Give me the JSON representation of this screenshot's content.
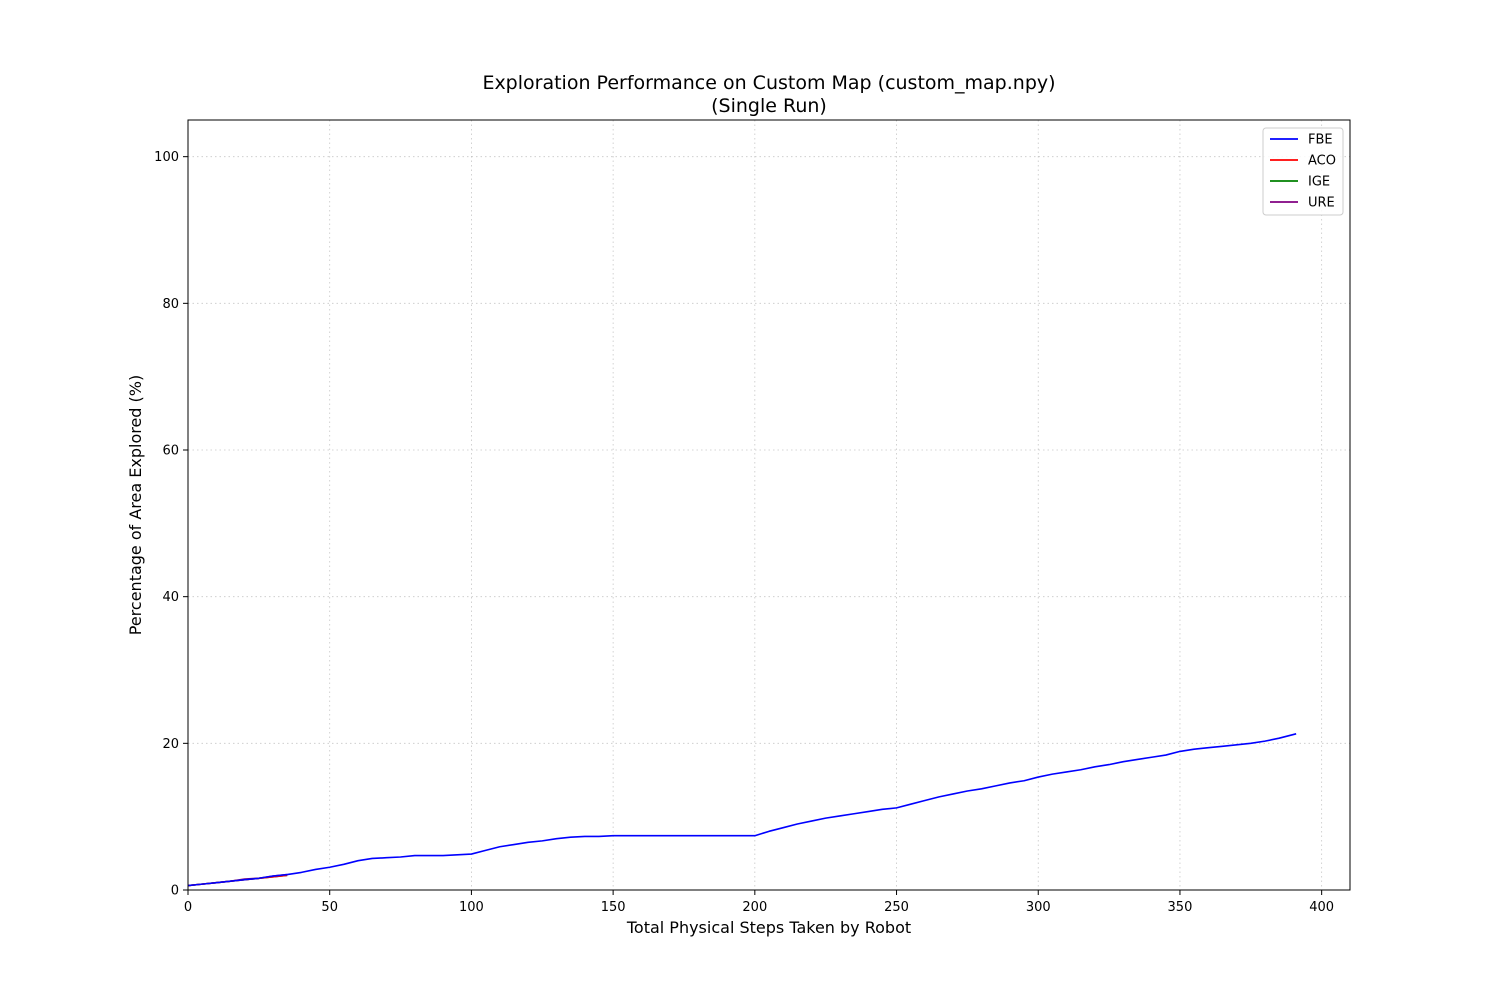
{
  "chart_data": {
    "type": "line",
    "title": "Exploration Performance on Custom Map (custom_map.npy)",
    "subtitle": "(Single Run)",
    "xlabel": "Total Physical Steps Taken by Robot",
    "ylabel": "Percentage of Area Explored (%)",
    "xlim": [
      0,
      410
    ],
    "ylim": [
      0,
      105
    ],
    "xticks": [
      0,
      50,
      100,
      150,
      200,
      250,
      300,
      350,
      400
    ],
    "yticks": [
      0,
      20,
      40,
      60,
      80,
      100
    ],
    "grid": true,
    "legend_position": "top-right",
    "series": [
      {
        "name": "FBE",
        "color": "#0000ff",
        "x": [
          0,
          5,
          10,
          15,
          20,
          25,
          30,
          35,
          40,
          45,
          50,
          55,
          60,
          65,
          70,
          75,
          80,
          85,
          90,
          95,
          100,
          105,
          110,
          115,
          120,
          125,
          130,
          135,
          140,
          145,
          150,
          160,
          170,
          180,
          190,
          200,
          205,
          210,
          215,
          220,
          225,
          230,
          235,
          240,
          245,
          250,
          255,
          260,
          265,
          270,
          275,
          280,
          285,
          290,
          295,
          300,
          305,
          310,
          315,
          320,
          325,
          330,
          335,
          340,
          345,
          350,
          355,
          360,
          365,
          370,
          375,
          380,
          385,
          391
        ],
        "y": [
          0.6,
          0.8,
          1.0,
          1.2,
          1.4,
          1.6,
          1.9,
          2.1,
          2.4,
          2.8,
          3.1,
          3.5,
          4.0,
          4.3,
          4.4,
          4.5,
          4.7,
          4.7,
          4.7,
          4.8,
          4.9,
          5.4,
          5.9,
          6.2,
          6.5,
          6.7,
          7.0,
          7.2,
          7.3,
          7.3,
          7.4,
          7.4,
          7.4,
          7.4,
          7.4,
          7.4,
          8.0,
          8.5,
          9.0,
          9.4,
          9.8,
          10.1,
          10.4,
          10.7,
          11.0,
          11.2,
          11.7,
          12.2,
          12.7,
          13.1,
          13.5,
          13.8,
          14.2,
          14.6,
          14.9,
          15.4,
          15.8,
          16.1,
          16.4,
          16.8,
          17.1,
          17.5,
          17.8,
          18.1,
          18.4,
          18.9,
          19.2,
          19.4,
          19.6,
          19.8,
          20.0,
          20.3,
          20.7,
          21.3
        ]
      },
      {
        "name": "ACO",
        "color": "#ff0000",
        "x": [
          0,
          5,
          10,
          15,
          20,
          25,
          30,
          35
        ],
        "y": [
          0.6,
          0.8,
          1.0,
          1.2,
          1.4,
          1.6,
          1.8,
          2.0
        ]
      },
      {
        "name": "IGE",
        "color": "#008000",
        "x": [
          0,
          5,
          10,
          15,
          20,
          25,
          30,
          35
        ],
        "y": [
          0.6,
          0.8,
          1.0,
          1.2,
          1.4,
          1.6,
          1.8,
          2.0
        ]
      },
      {
        "name": "URE",
        "color": "#800080",
        "x": [
          0,
          5,
          10,
          15,
          20,
          25,
          30,
          35
        ],
        "y": [
          0.6,
          0.8,
          1.0,
          1.2,
          1.5,
          1.6,
          1.9,
          2.1
        ]
      }
    ]
  }
}
